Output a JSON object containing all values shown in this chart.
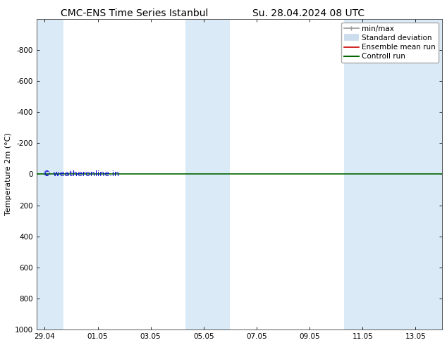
{
  "title_left": "CMC-ENS Time Series Istanbul",
  "title_right": "Su. 28.04.2024 08 UTC",
  "ylabel": "Temperature 2m (°C)",
  "watermark": "© weatheronline.in",
  "watermark_color": "#0000cc",
  "background_color": "#ffffff",
  "plot_bg_color": "#ffffff",
  "shaded_band_color": "#daeaf7",
  "ylim_top": -1000,
  "ylim_bottom": 1000,
  "yticks": [
    -800,
    -600,
    -400,
    -200,
    0,
    200,
    400,
    600,
    800,
    1000
  ],
  "xtick_labels": [
    "29.04",
    "01.05",
    "03.05",
    "05.05",
    "07.05",
    "09.05",
    "11.05",
    "13.05"
  ],
  "xtick_positions": [
    0,
    2,
    4,
    6,
    8,
    10,
    12,
    14
  ],
  "xmin": -0.3,
  "xmax": 15.0,
  "shaded_bands": [
    {
      "x_start": -0.3,
      "x_end": 0.7
    },
    {
      "x_start": 5.3,
      "x_end": 7.0
    },
    {
      "x_start": 11.3,
      "x_end": 15.0
    }
  ],
  "green_line_y": 0,
  "green_line_color": "#006600",
  "red_line_color": "#cc0000",
  "legend_items": [
    {
      "label": "min/max",
      "color": "#999999",
      "lw": 1.2
    },
    {
      "label": "Standard deviation",
      "color": "#ccddee",
      "lw": 7
    },
    {
      "label": "Ensemble mean run",
      "color": "#cc0000",
      "lw": 1.2
    },
    {
      "label": "Controll run",
      "color": "#006600",
      "lw": 1.5
    }
  ],
  "font_size_title": 10,
  "font_size_axis_label": 8,
  "font_size_tick": 7.5,
  "font_size_legend": 7.5,
  "font_size_watermark": 8
}
